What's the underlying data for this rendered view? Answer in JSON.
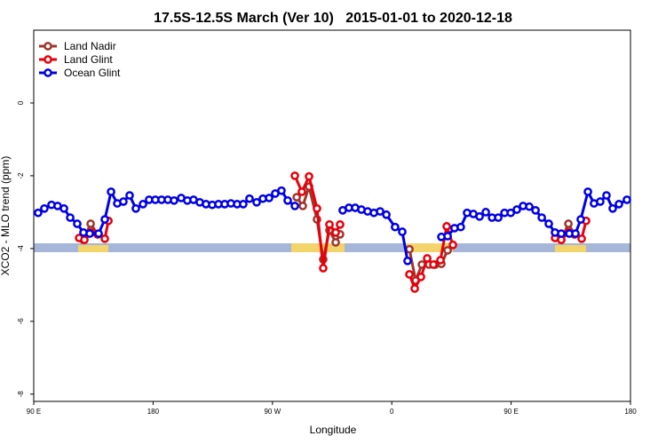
{
  "chart_data": {
    "type": "line",
    "title": "17.5S-12.5S March (Ver 10)   2015-01-01 to 2020-12-18",
    "x_label": "Longitude",
    "y_label": "XCO2 - MLO trend (ppm)",
    "xlim": [
      90,
      540
    ],
    "ylim": [
      2.0,
      -8.2
    ],
    "xticks": [
      {
        "value": 90,
        "label": "90 E"
      },
      {
        "value": 180,
        "label": "180"
      },
      {
        "value": 270,
        "label": "90 W"
      },
      {
        "value": 360,
        "label": "0"
      },
      {
        "value": 450,
        "label": "90 E"
      },
      {
        "value": 540,
        "label": "180"
      }
    ],
    "yticks": [
      0,
      -2,
      -4,
      -6,
      -8
    ],
    "legend": "top-left",
    "series": [
      {
        "name": "Land Nadir",
        "color": "#a0342c",
        "x": [
          127.5,
          132.9,
          138.2,
          200,
          288.3,
          292.9,
          297.6,
          303.6,
          308.3,
          313,
          317.7,
          321,
          350,
          373.3,
          378,
          382.7,
          388,
          392.7,
          397.4,
          402.1,
          440,
          487.8,
          493.2,
          497.8
        ],
        "values": [
          -3.76,
          -3.32,
          -3.61,
          null,
          -2.59,
          -2.83,
          -2.3,
          -3.2,
          -4.3,
          -3.5,
          -3.83,
          -3.61,
          null,
          -4.02,
          -4.88,
          -4.44,
          -4.44,
          -4.44,
          -4.42,
          -4.05,
          null,
          -3.76,
          -3.32,
          -3.61
        ]
      },
      {
        "name": "Land Glint",
        "color": "#e8000b",
        "x": [
          124.2,
          128.2,
          133.5,
          138.2,
          143.6,
          146.3,
          200,
          286.9,
          292.2,
          297.6,
          303.6,
          308.3,
          313,
          317.7,
          321,
          350,
          373.3,
          377.3,
          382,
          386.7,
          391.4,
          396.7,
          401.4,
          406.1,
          440,
          483.1,
          487.8,
          493.2,
          497.8,
          503.2,
          506.5
        ],
        "values": [
          -3.71,
          -3.76,
          -3.56,
          -3.61,
          -3.73,
          -3.24,
          null,
          -2.0,
          -2.44,
          -2.02,
          -2.9,
          -4.54,
          -3.34,
          -3.56,
          -3.34,
          null,
          -4.71,
          -5.1,
          -4.78,
          -4.27,
          -4.44,
          -4.32,
          -3.39,
          -3.9,
          null,
          -3.71,
          -3.76,
          -3.56,
          -3.61,
          -3.73,
          -3.24
        ]
      },
      {
        "name": "Ocean Glint",
        "color": "#0000e6",
        "x": [
          93.3,
          98,
          103.4,
          108,
          112.8,
          117.5,
          122.8,
          127.5,
          132.2,
          138.9,
          143.6,
          148.3,
          153,
          157.6,
          162.3,
          167,
          172.4,
          177,
          181.7,
          186.4,
          191.1,
          195.8,
          201.2,
          205.8,
          210.5,
          215.2,
          219.9,
          224.6,
          229.3,
          234,
          238.7,
          243.4,
          248,
          252.7,
          258.1,
          262.8,
          267.5,
          272.1,
          276.8,
          281.5,
          286.9,
          305,
          323,
          327.7,
          332.4,
          337.1,
          341.8,
          346.5,
          351.2,
          355.9,
          362.5,
          367.9,
          371.9,
          385,
          397.4,
          402.1,
          407.3,
          412,
          416.8,
          421.5,
          426.2,
          430.9,
          435.6,
          440.3,
          445,
          449.7,
          454.3,
          459,
          463.7,
          468.4,
          473.1,
          478.4,
          483.1,
          487.8,
          493.9,
          498.5,
          502.5,
          507.9,
          512.5,
          517.2,
          521.9,
          526.6,
          531.3,
          537.3
        ],
        "values": [
          -3.02,
          -2.9,
          -2.8,
          -2.83,
          -2.9,
          -3.15,
          -3.32,
          -3.56,
          -3.59,
          -3.59,
          -3.2,
          -2.44,
          -2.76,
          -2.71,
          -2.54,
          -2.9,
          -2.78,
          -2.66,
          -2.66,
          -2.66,
          -2.66,
          -2.68,
          -2.61,
          -2.68,
          -2.66,
          -2.73,
          -2.78,
          -2.8,
          -2.78,
          -2.78,
          -2.76,
          -2.78,
          -2.78,
          -2.63,
          -2.73,
          -2.63,
          -2.61,
          -2.49,
          -2.41,
          -2.68,
          -2.83,
          null,
          -2.95,
          -2.88,
          -2.88,
          -2.93,
          -2.98,
          -3.02,
          -2.98,
          -3.07,
          -3.41,
          -3.54,
          -4.34,
          null,
          -3.68,
          -3.66,
          -3.44,
          -3.41,
          -3.02,
          -3.05,
          -3.12,
          -3.0,
          -3.15,
          -3.15,
          -3.02,
          -3.02,
          -2.93,
          -2.83,
          -2.85,
          -2.95,
          -3.15,
          -3.32,
          -3.56,
          -3.59,
          -3.59,
          -3.59,
          -3.2,
          -2.44,
          -2.76,
          -2.71,
          -2.54,
          -2.9,
          -2.78,
          -2.66
        ]
      }
    ]
  }
}
